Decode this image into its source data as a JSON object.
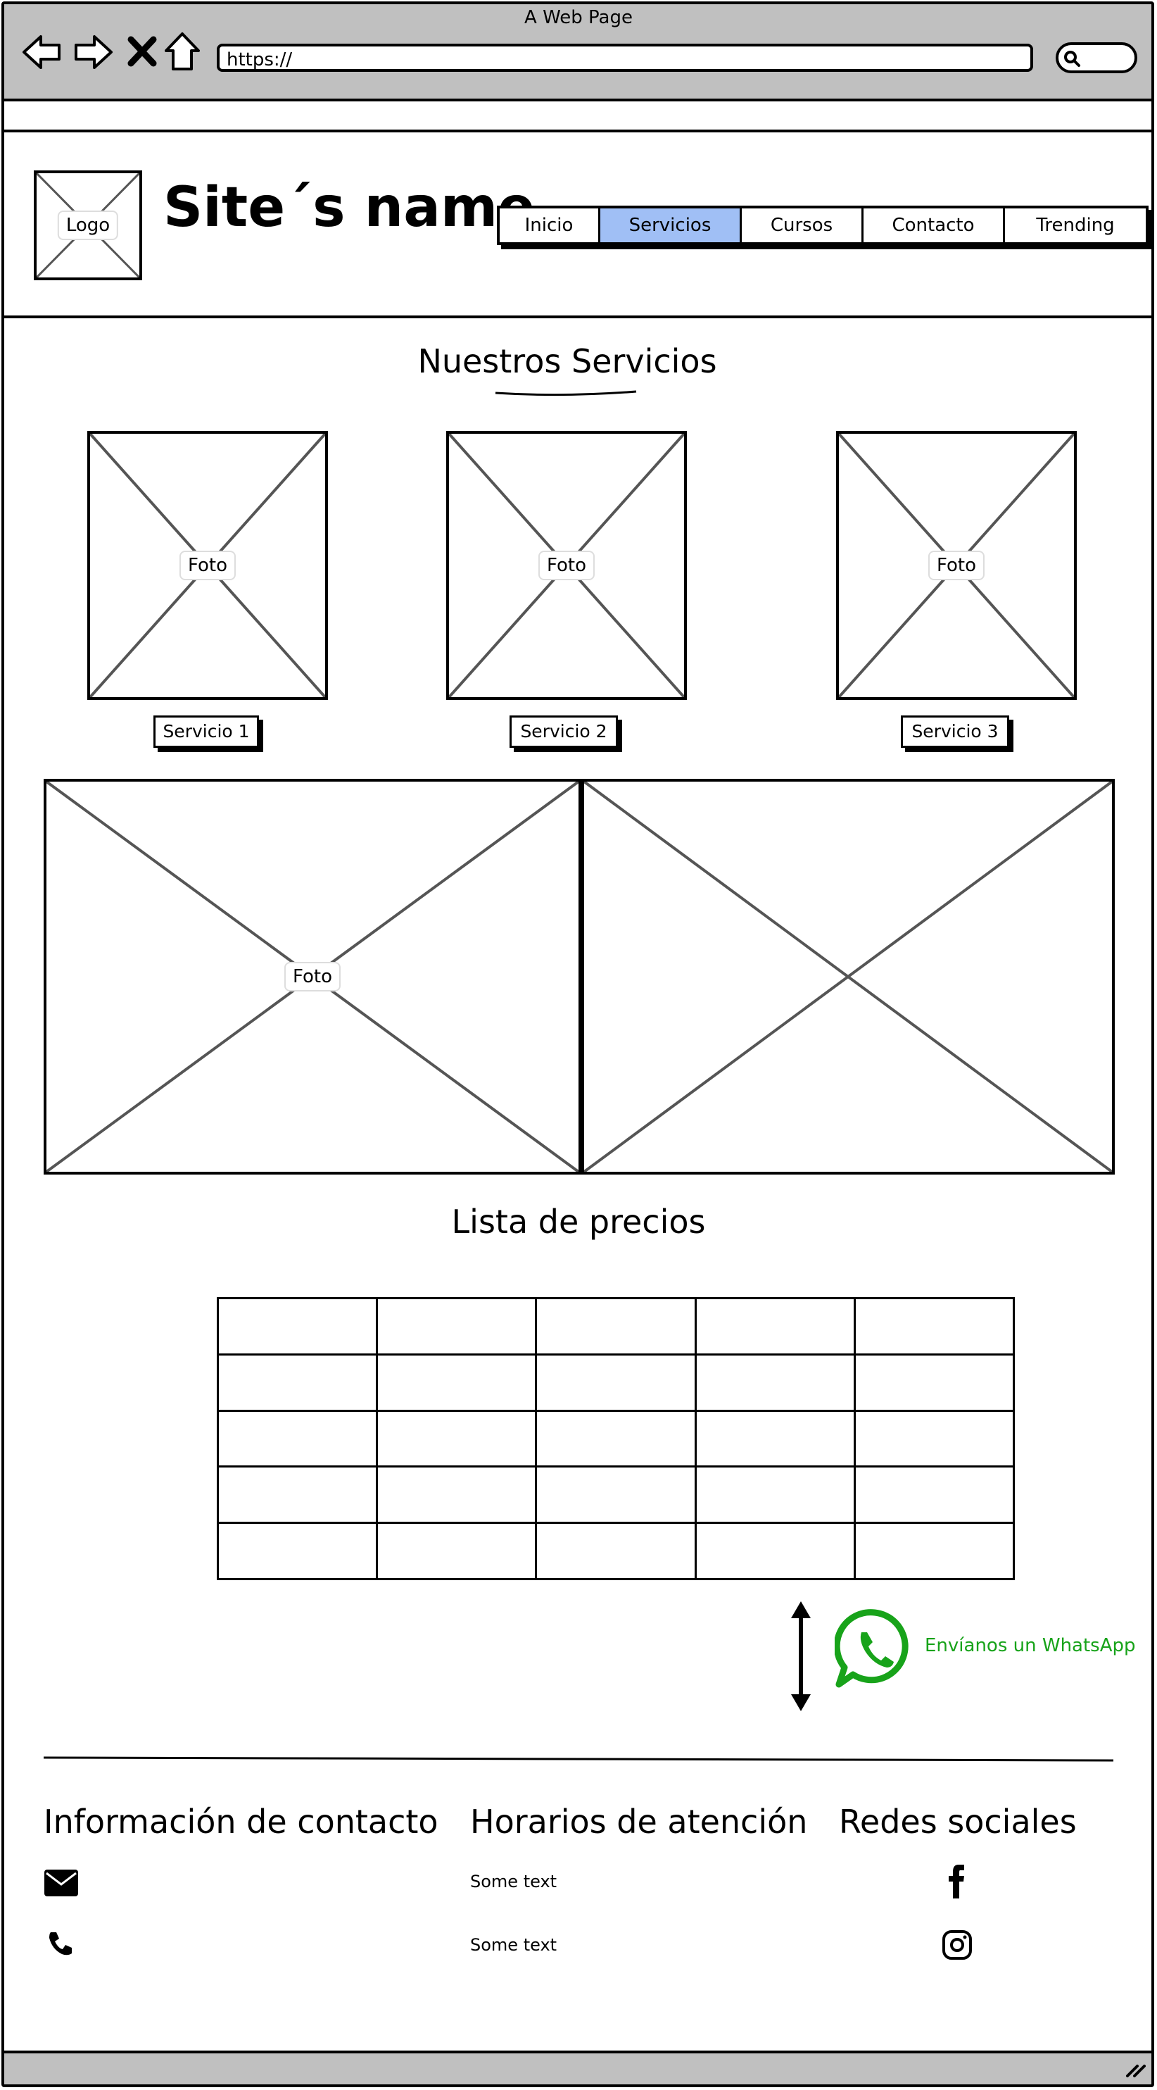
{
  "browser": {
    "window_title": "A Web Page",
    "url": "https://"
  },
  "header": {
    "logo_label": "Logo",
    "site_name": "Site´s name",
    "nav": [
      {
        "label": "Inicio",
        "active": false
      },
      {
        "label": "Servicios",
        "active": true
      },
      {
        "label": "Cursos",
        "active": false
      },
      {
        "label": "Contacto",
        "active": false
      },
      {
        "label": "Trending",
        "active": false
      }
    ]
  },
  "services": {
    "title": "Nuestros Servicios",
    "items": [
      {
        "photo_label": "Foto",
        "button_label": "Servicio 1"
      },
      {
        "photo_label": "Foto",
        "button_label": "Servicio 2"
      },
      {
        "photo_label": "Foto",
        "button_label": "Servicio 3"
      }
    ],
    "banner_photo_label": "Foto"
  },
  "prices": {
    "title": "Lista de precios",
    "rows": 5,
    "cols": 5
  },
  "whatsapp": {
    "label": "Envíanos un WhatsApp",
    "color": "#18a31a"
  },
  "footer": {
    "contact": {
      "title": "Información de contacto",
      "icons": [
        "envelope-icon",
        "phone-icon"
      ]
    },
    "hours": {
      "title": "Horarios de atención",
      "lines": [
        "Some text",
        "Some text"
      ]
    },
    "social": {
      "title": "Redes sociales",
      "icons": [
        "facebook-icon",
        "instagram-icon"
      ]
    }
  },
  "colors": {
    "chrome": "#c0c0c0",
    "nav_active": "#a0bff5"
  }
}
